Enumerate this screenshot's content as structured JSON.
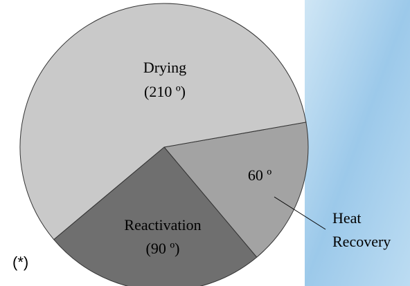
{
  "chart_data": {
    "type": "pie",
    "categories": [
      "Heat Recovery",
      "Reactivation",
      "Drying"
    ],
    "values": [
      60,
      90,
      210
    ],
    "value_labels": [
      "60 º",
      "(90 º)",
      "(210 º)"
    ],
    "colors": [
      "#a3a3a3",
      "#6f6f6f",
      "#c9c9c9"
    ],
    "annotation": "(*)"
  }
}
